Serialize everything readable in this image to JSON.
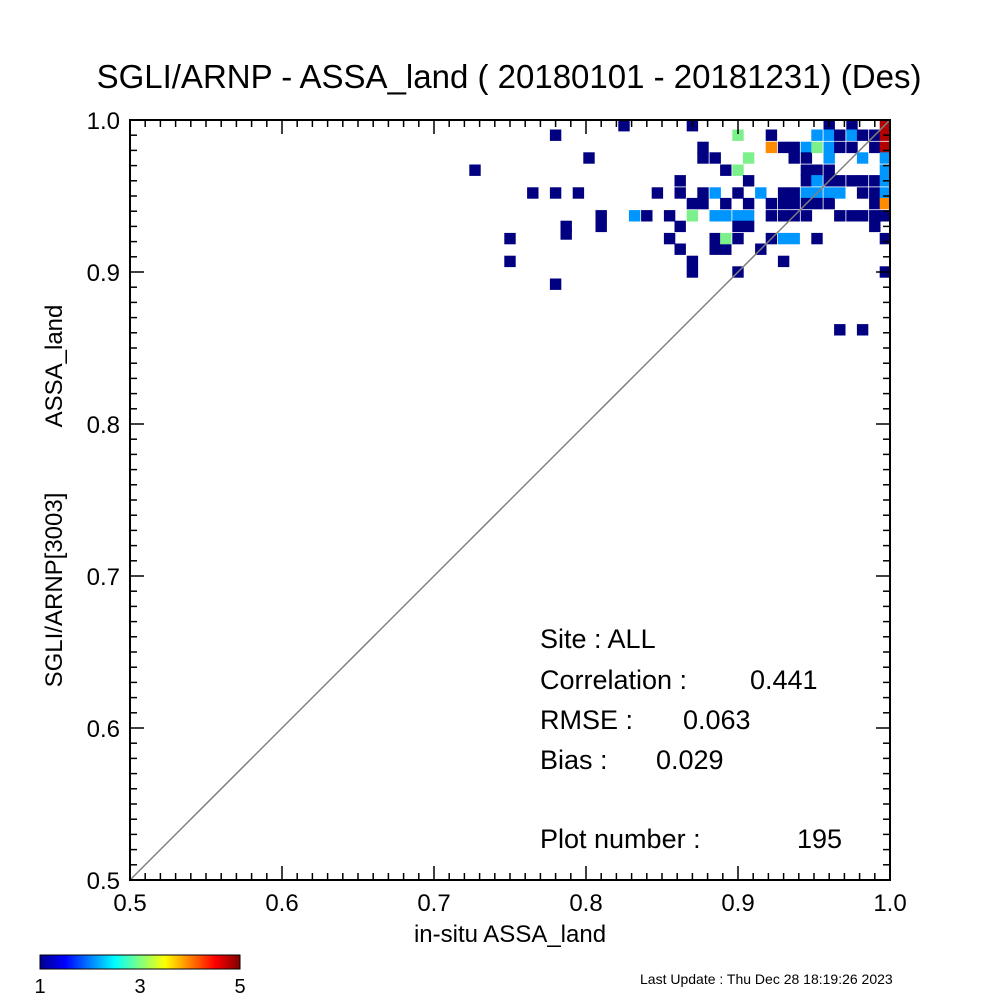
{
  "chart_data": {
    "type": "heatmap",
    "title": "SGLI/ARNP - ASSA_land ( 20180101 - 20181231) (Des)",
    "xlabel": "in-situ ASSA_land",
    "ylabel_parts": [
      "SGLI/ARNP[3003]",
      "ASSA_land"
    ],
    "xlim": [
      0.5,
      1.0
    ],
    "ylim": [
      0.5,
      1.0
    ],
    "x_ticks": [
      "0.5",
      "0.6",
      "0.7",
      "0.8",
      "0.9",
      "1.0"
    ],
    "y_ticks": [
      "0.5",
      "0.6",
      "0.7",
      "0.8",
      "0.9",
      "1.0"
    ],
    "bin_size": 0.0075,
    "one_to_one_line": true,
    "colorbar": {
      "min": 1,
      "max": 5,
      "labels": [
        "1",
        "3",
        "5"
      ]
    },
    "bins": [
      [
        0.727,
        0.967,
        1
      ],
      [
        0.75,
        0.922,
        1
      ],
      [
        0.75,
        0.907,
        1
      ],
      [
        0.765,
        0.952,
        1
      ],
      [
        0.78,
        0.952,
        1
      ],
      [
        0.78,
        0.892,
        1
      ],
      [
        0.78,
        0.99,
        1
      ],
      [
        0.787,
        0.93,
        1
      ],
      [
        0.787,
        0.925,
        1
      ],
      [
        0.795,
        0.952,
        1
      ],
      [
        0.802,
        0.975,
        1
      ],
      [
        0.81,
        0.937,
        1
      ],
      [
        0.81,
        0.93,
        1
      ],
      [
        0.825,
        0.997,
        1
      ],
      [
        0.832,
        0.937,
        2
      ],
      [
        0.84,
        0.937,
        1
      ],
      [
        0.847,
        0.952,
        1
      ],
      [
        0.855,
        0.937,
        1
      ],
      [
        0.855,
        0.922,
        1
      ],
      [
        0.862,
        0.96,
        1
      ],
      [
        0.862,
        0.952,
        1
      ],
      [
        0.862,
        0.93,
        1
      ],
      [
        0.862,
        0.915,
        1
      ],
      [
        0.87,
        0.997,
        1
      ],
      [
        0.87,
        0.945,
        1
      ],
      [
        0.87,
        0.937,
        3
      ],
      [
        0.87,
        0.907,
        1
      ],
      [
        0.87,
        0.9,
        1
      ],
      [
        0.877,
        0.982,
        1
      ],
      [
        0.877,
        0.975,
        1
      ],
      [
        0.877,
        0.952,
        1
      ],
      [
        0.877,
        0.945,
        1
      ],
      [
        0.885,
        0.975,
        1
      ],
      [
        0.885,
        0.952,
        2
      ],
      [
        0.885,
        0.937,
        2
      ],
      [
        0.885,
        0.922,
        1
      ],
      [
        0.885,
        0.915,
        1
      ],
      [
        0.892,
        0.967,
        1
      ],
      [
        0.892,
        0.945,
        1
      ],
      [
        0.892,
        0.937,
        2
      ],
      [
        0.892,
        0.915,
        1
      ],
      [
        0.892,
        0.922,
        3
      ],
      [
        0.9,
        0.99,
        3
      ],
      [
        0.9,
        0.967,
        3
      ],
      [
        0.9,
        0.952,
        1
      ],
      [
        0.9,
        0.937,
        2
      ],
      [
        0.9,
        0.93,
        1
      ],
      [
        0.9,
        0.922,
        1
      ],
      [
        0.9,
        0.9,
        1
      ],
      [
        0.907,
        0.975,
        3
      ],
      [
        0.907,
        0.96,
        1
      ],
      [
        0.907,
        0.945,
        1
      ],
      [
        0.907,
        0.937,
        2
      ],
      [
        0.907,
        0.93,
        1
      ],
      [
        0.915,
        0.952,
        2
      ],
      [
        0.915,
        0.915,
        1
      ],
      [
        0.922,
        0.99,
        1
      ],
      [
        0.922,
        0.982,
        4
      ],
      [
        0.922,
        0.945,
        1
      ],
      [
        0.922,
        0.937,
        1
      ],
      [
        0.922,
        0.922,
        1
      ],
      [
        0.93,
        0.982,
        1
      ],
      [
        0.93,
        0.952,
        1
      ],
      [
        0.93,
        0.945,
        1
      ],
      [
        0.93,
        0.937,
        1
      ],
      [
        0.93,
        0.922,
        2
      ],
      [
        0.93,
        0.907,
        1
      ],
      [
        0.937,
        0.982,
        1
      ],
      [
        0.937,
        0.975,
        1
      ],
      [
        0.937,
        0.952,
        1
      ],
      [
        0.937,
        0.945,
        1
      ],
      [
        0.937,
        0.937,
        1
      ],
      [
        0.937,
        0.922,
        2
      ],
      [
        0.945,
        0.982,
        2
      ],
      [
        0.945,
        0.975,
        1
      ],
      [
        0.945,
        0.967,
        1
      ],
      [
        0.945,
        0.96,
        1
      ],
      [
        0.945,
        0.952,
        2
      ],
      [
        0.945,
        0.945,
        1
      ],
      [
        0.945,
        0.937,
        1
      ],
      [
        0.952,
        0.99,
        2
      ],
      [
        0.952,
        0.982,
        3
      ],
      [
        0.952,
        0.967,
        1
      ],
      [
        0.952,
        0.96,
        2
      ],
      [
        0.952,
        0.952,
        2
      ],
      [
        0.952,
        0.945,
        1
      ],
      [
        0.952,
        0.922,
        1
      ],
      [
        0.96,
        0.997,
        1
      ],
      [
        0.96,
        0.99,
        2
      ],
      [
        0.96,
        0.982,
        2
      ],
      [
        0.96,
        0.975,
        2
      ],
      [
        0.96,
        0.967,
        1
      ],
      [
        0.96,
        0.96,
        1
      ],
      [
        0.96,
        0.952,
        2
      ],
      [
        0.96,
        0.945,
        1
      ],
      [
        0.967,
        0.99,
        1
      ],
      [
        0.967,
        0.982,
        1
      ],
      [
        0.967,
        0.96,
        1
      ],
      [
        0.967,
        0.952,
        2
      ],
      [
        0.967,
        0.937,
        1
      ],
      [
        0.967,
        0.862,
        1
      ],
      [
        0.975,
        0.997,
        1
      ],
      [
        0.975,
        0.99,
        2
      ],
      [
        0.975,
        0.982,
        1
      ],
      [
        0.975,
        0.96,
        1
      ],
      [
        0.975,
        0.937,
        1
      ],
      [
        0.982,
        0.99,
        1
      ],
      [
        0.982,
        0.975,
        2
      ],
      [
        0.982,
        0.96,
        1
      ],
      [
        0.982,
        0.952,
        1
      ],
      [
        0.982,
        0.937,
        1
      ],
      [
        0.982,
        0.862,
        1
      ],
      [
        0.99,
        0.99,
        1
      ],
      [
        0.99,
        0.982,
        1
      ],
      [
        0.99,
        0.96,
        1
      ],
      [
        0.99,
        0.952,
        1
      ],
      [
        0.99,
        0.945,
        1
      ],
      [
        0.99,
        0.937,
        1
      ],
      [
        0.99,
        0.93,
        1
      ],
      [
        0.997,
        0.997,
        5
      ],
      [
        0.997,
        0.99,
        5
      ],
      [
        0.997,
        0.982,
        5
      ],
      [
        0.997,
        0.975,
        2
      ],
      [
        0.997,
        0.967,
        2
      ],
      [
        0.997,
        0.96,
        2
      ],
      [
        0.997,
        0.952,
        2
      ],
      [
        0.997,
        0.945,
        4
      ],
      [
        0.997,
        0.937,
        1
      ],
      [
        0.997,
        0.922,
        1
      ],
      [
        0.997,
        0.9,
        1
      ]
    ]
  },
  "stats": {
    "site_label": "Site : ALL",
    "corr_label": "Correlation :",
    "corr_value": "0.441",
    "rmse_label": "RMSE :",
    "rmse_value": "0.063",
    "bias_label": "Bias :",
    "bias_value": "0.029",
    "count_label": "Plot number :",
    "count_value": "195"
  },
  "footer": {
    "last_update": "Last Update : Thu Dec 28 18:19:26 2023"
  }
}
